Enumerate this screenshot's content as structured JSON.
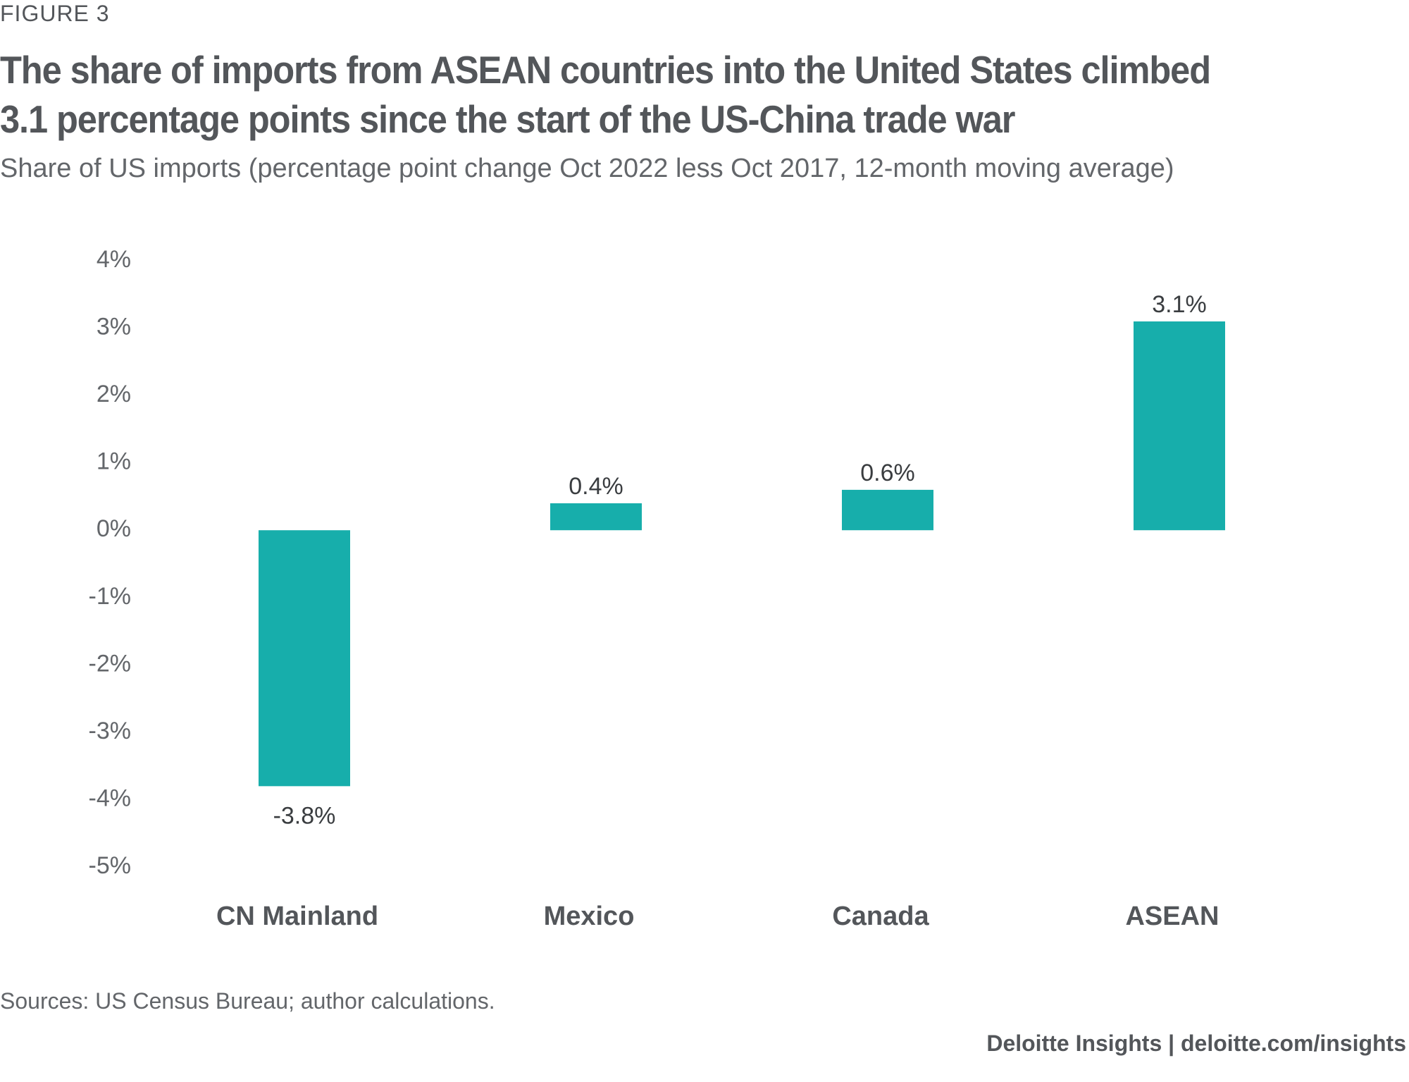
{
  "figure_label": "FIGURE 3",
  "title": "The share of imports from ASEAN countries into the United States climbed 3.1 percentage points since the start of the US-China trade war",
  "subtitle": "Share of US imports (percentage point change Oct 2022 less Oct 2017, 12-month moving average)",
  "sources": "Sources: US Census Bureau; author calculations.",
  "footer": "Deloitte Insights | deloitte.com/insights",
  "colors": {
    "bar": "#17aeab",
    "axis_text": "#63666a",
    "category_text": "#53565a",
    "label_text": "#3a3d40"
  },
  "chart_data": {
    "type": "bar",
    "title": "The share of imports from ASEAN countries into the United States climbed 3.1 percentage points since the start of the US-China trade war",
    "subtitle": "Share of US imports (percentage point change Oct 2022 less Oct 2017, 12-month moving average)",
    "xlabel": "",
    "ylabel": "",
    "categories": [
      "CN Mainland",
      "Mexico",
      "Canada",
      "ASEAN"
    ],
    "values": [
      -3.8,
      0.4,
      0.6,
      3.1
    ],
    "data_labels": [
      "-3.8%",
      "0.4%",
      "0.6%",
      "3.1%"
    ],
    "ylim": [
      -5,
      4
    ],
    "yticks": [
      4,
      3,
      2,
      1,
      0,
      -1,
      -2,
      -3,
      -4,
      -5
    ],
    "ytick_labels": [
      "4%",
      "3%",
      "2%",
      "1%",
      "0%",
      "-1%",
      "-2%",
      "-3%",
      "-4%",
      "-5%"
    ],
    "grid": false,
    "legend": "none"
  }
}
